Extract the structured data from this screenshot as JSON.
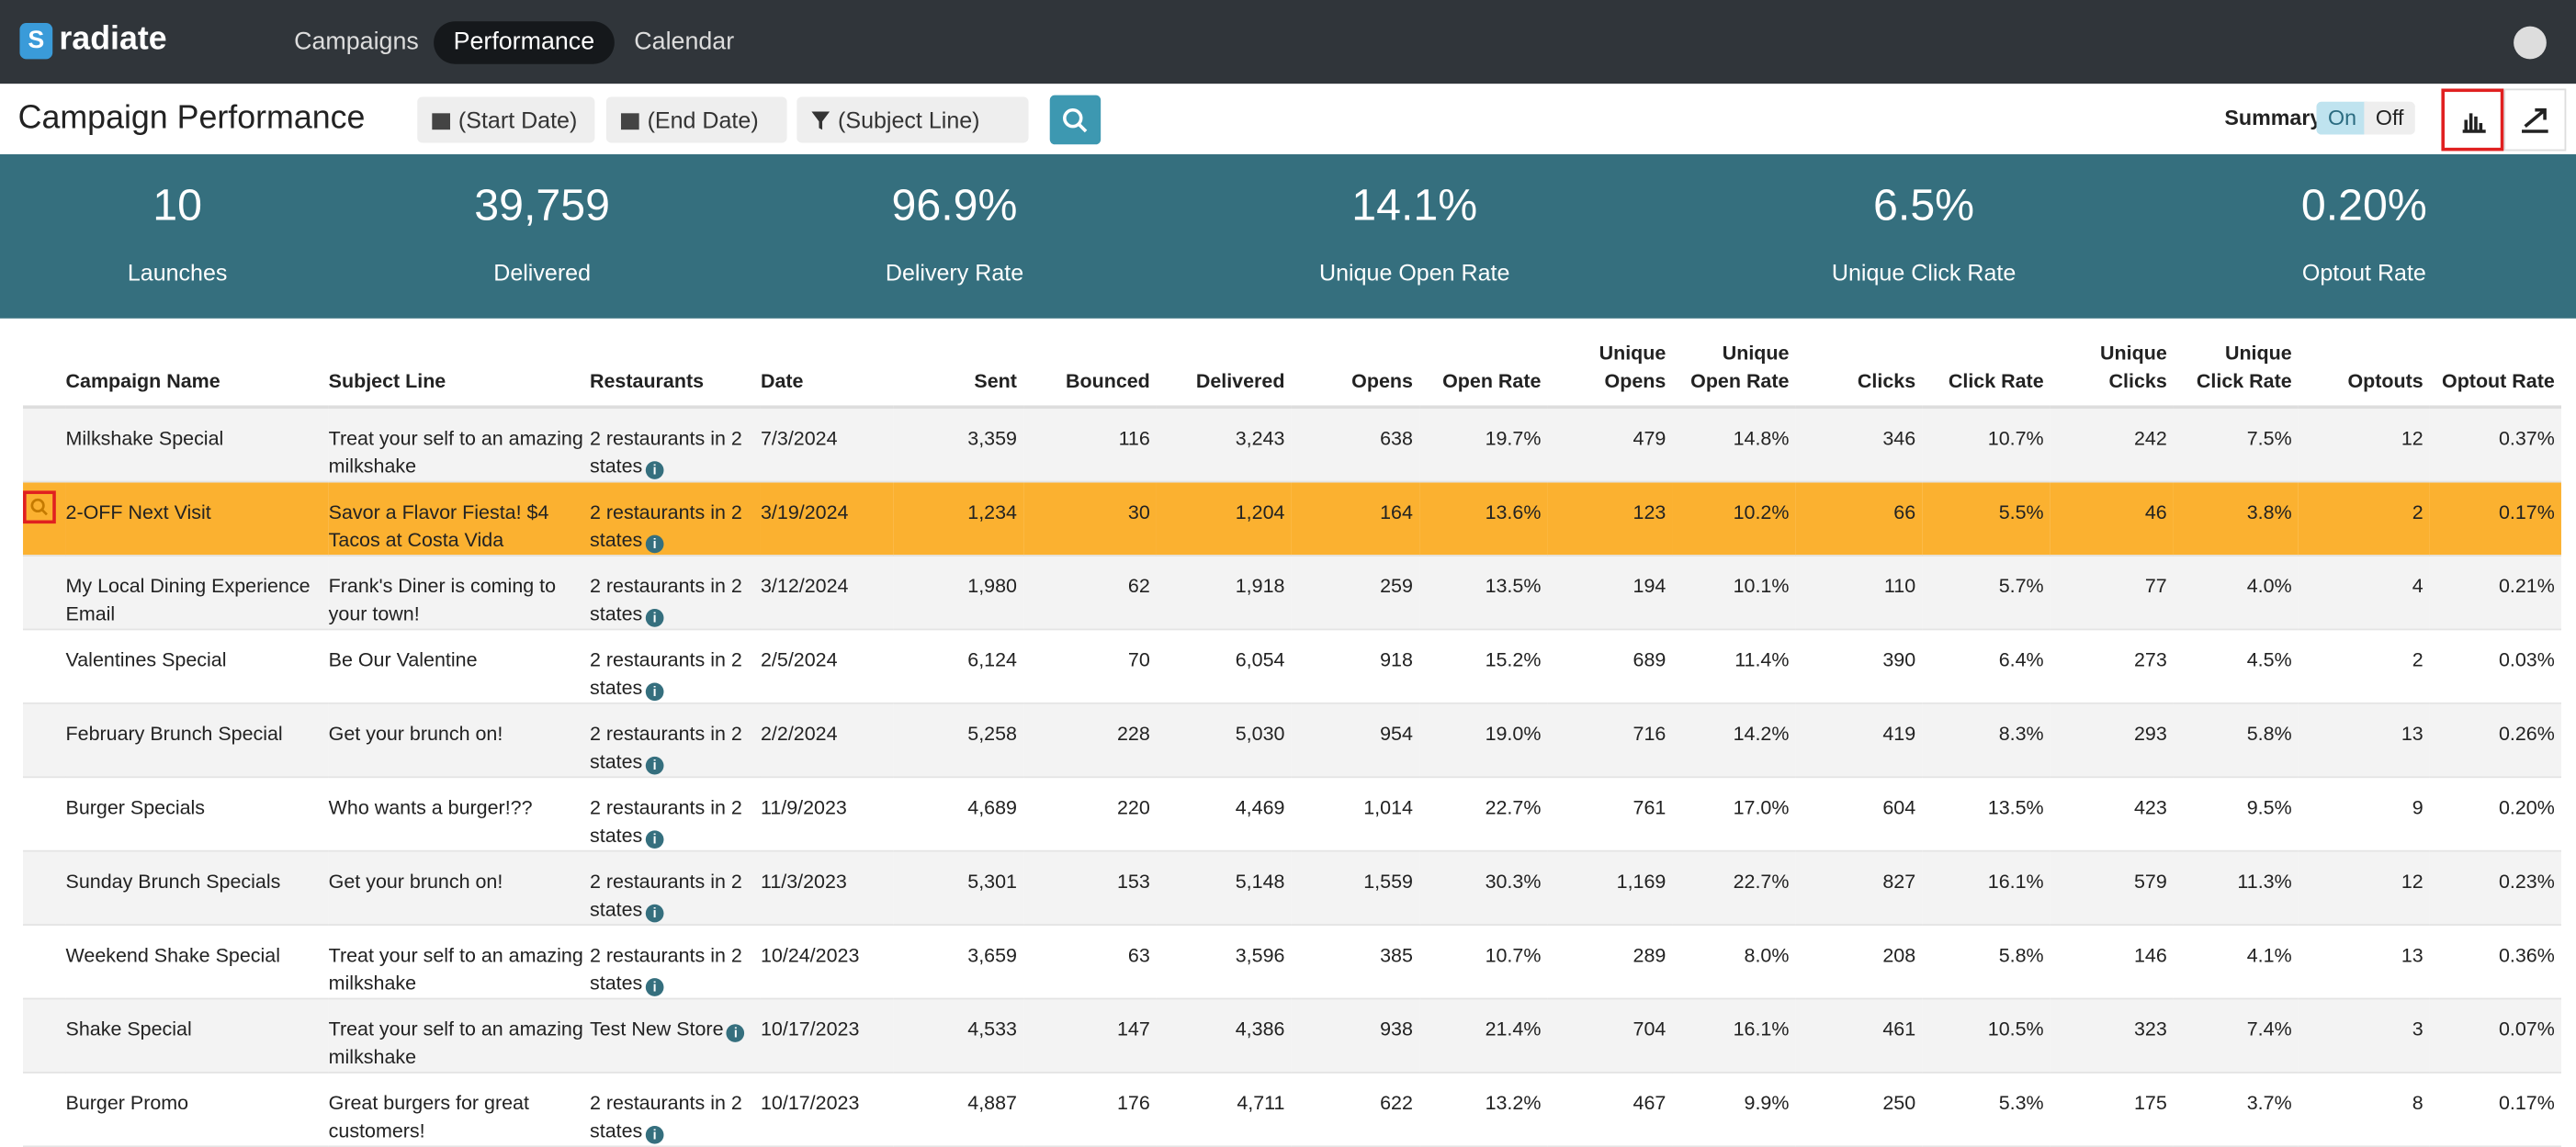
{
  "nav": {
    "brand": "radiate",
    "items": [
      "Campaigns",
      "Performance",
      "Calendar"
    ]
  },
  "header": {
    "title": "Campaign Performance",
    "filters": [
      "(Start Date)",
      "(End Date)",
      "(Subject Line)"
    ],
    "summary_label": "Summary",
    "toggle": [
      "On",
      "Off"
    ]
  },
  "stats": [
    {
      "value": "10",
      "label": "Launches"
    },
    {
      "value": "39,759",
      "label": "Delivered"
    },
    {
      "value": "96.9%",
      "label": "Delivery Rate"
    },
    {
      "value": "14.1%",
      "label": "Unique Open Rate"
    },
    {
      "value": "6.5%",
      "label": "Unique Click Rate"
    },
    {
      "value": "0.20%",
      "label": "Optout Rate"
    }
  ],
  "table": {
    "columns": [
      "Campaign Name",
      "Subject Line",
      "Restaurants",
      "Date",
      "Sent",
      "Bounced",
      "Delivered",
      "Opens",
      "Open Rate",
      "Unique Opens",
      "Unique Open Rate",
      "Clicks",
      "Click Rate",
      "Unique Clicks",
      "Unique Click Rate",
      "Optouts",
      "Optout Rate"
    ],
    "rows": [
      [
        "Milkshake Special",
        "Treat your self to an amazing milkshake",
        "2 restaurants in 2 states",
        "7/3/2024",
        "3,359",
        "116",
        "3,243",
        "638",
        "19.7%",
        "479",
        "14.8%",
        "346",
        "10.7%",
        "242",
        "7.5%",
        "12",
        "0.37%"
      ],
      [
        "2-OFF Next Visit",
        "Savor a Flavor Fiesta! $4 Tacos at Costa Vida",
        "2 restaurants in 2 states",
        "3/19/2024",
        "1,234",
        "30",
        "1,204",
        "164",
        "13.6%",
        "123",
        "10.2%",
        "66",
        "5.5%",
        "46",
        "3.8%",
        "2",
        "0.17%"
      ],
      [
        "My Local Dining Experience Email",
        "Frank's Diner is coming to your town!",
        "2 restaurants in 2 states",
        "3/12/2024",
        "1,980",
        "62",
        "1,918",
        "259",
        "13.5%",
        "194",
        "10.1%",
        "110",
        "5.7%",
        "77",
        "4.0%",
        "4",
        "0.21%"
      ],
      [
        "Valentines Special",
        "Be Our Valentine",
        "2 restaurants in 2 states",
        "2/5/2024",
        "6,124",
        "70",
        "6,054",
        "918",
        "15.2%",
        "689",
        "11.4%",
        "390",
        "6.4%",
        "273",
        "4.5%",
        "2",
        "0.03%"
      ],
      [
        "February Brunch Special",
        "Get your brunch on!",
        "2 restaurants in 2 states",
        "2/2/2024",
        "5,258",
        "228",
        "5,030",
        "954",
        "19.0%",
        "716",
        "14.2%",
        "419",
        "8.3%",
        "293",
        "5.8%",
        "13",
        "0.26%"
      ],
      [
        "Burger Specials",
        "Who wants a burger!??",
        "2 restaurants in 2 states",
        "11/9/2023",
        "4,689",
        "220",
        "4,469",
        "1,014",
        "22.7%",
        "761",
        "17.0%",
        "604",
        "13.5%",
        "423",
        "9.5%",
        "9",
        "0.20%"
      ],
      [
        "Sunday Brunch Specials",
        "Get your brunch on!",
        "2 restaurants in 2 states",
        "11/3/2023",
        "5,301",
        "153",
        "5,148",
        "1,559",
        "30.3%",
        "1,169",
        "22.7%",
        "827",
        "16.1%",
        "579",
        "11.3%",
        "12",
        "0.23%"
      ],
      [
        "Weekend Shake Special",
        "Treat your self to an amazing milkshake",
        "2 restaurants in 2 states",
        "10/24/2023",
        "3,659",
        "63",
        "3,596",
        "385",
        "10.7%",
        "289",
        "8.0%",
        "208",
        "5.8%",
        "146",
        "4.1%",
        "13",
        "0.36%"
      ],
      [
        "Shake Special",
        "Treat your self to an amazing milkshake",
        "Test New Store",
        "10/17/2023",
        "4,533",
        "147",
        "4,386",
        "938",
        "21.4%",
        "704",
        "16.1%",
        "461",
        "10.5%",
        "323",
        "7.4%",
        "3",
        "0.07%"
      ],
      [
        "Burger Promo",
        "Great burgers for great customers!",
        "2 restaurants in 2 states",
        "10/17/2023",
        "4,887",
        "176",
        "4,711",
        "622",
        "13.2%",
        "467",
        "9.9%",
        "250",
        "5.3%",
        "175",
        "3.7%",
        "8",
        "0.17%"
      ]
    ]
  }
}
